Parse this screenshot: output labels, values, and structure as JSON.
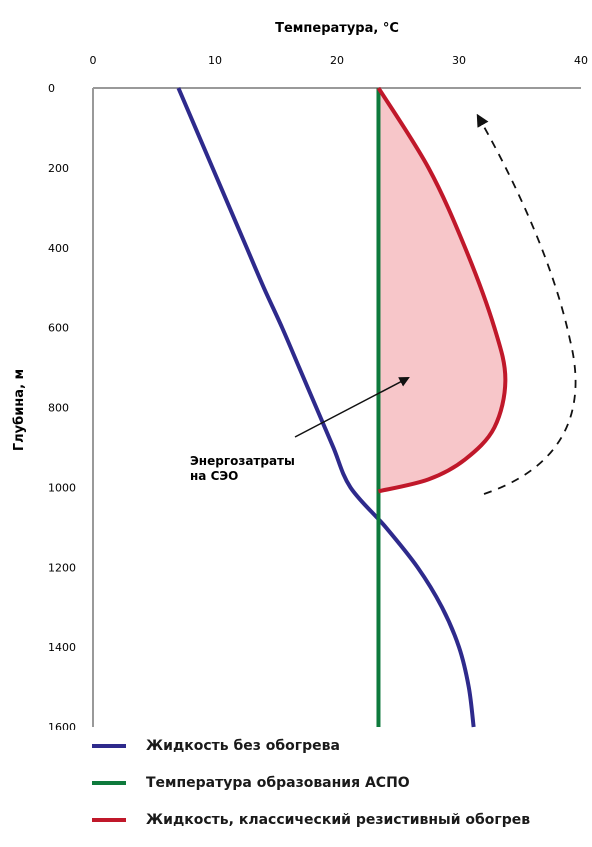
{
  "chart_data": {
    "type": "line",
    "title": "Температура, °C",
    "xlabel": "Температура, °C",
    "ylabel": "Глубина, м",
    "x_axis_position": "top",
    "y_axis_inverted": true,
    "xlim": [
      0,
      40
    ],
    "ylim": [
      0,
      1600
    ],
    "xticks": [
      "0",
      "10",
      "20",
      "30",
      "40"
    ],
    "yticks": [
      "0",
      "200",
      "400",
      "600",
      "800",
      "1000",
      "1200",
      "1400",
      "1600"
    ],
    "grid": false,
    "legend_position": "bottom",
    "series": [
      {
        "name": "Жидкость без обогрева",
        "color": "#2e2a8c",
        "points": [
          [
            7.0,
            0
          ],
          [
            8.4,
            100
          ],
          [
            9.8,
            200
          ],
          [
            11.2,
            300
          ],
          [
            12.6,
            400
          ],
          [
            14.0,
            500
          ],
          [
            15.5,
            600
          ],
          [
            16.9,
            700
          ],
          [
            18.3,
            800
          ],
          [
            19.7,
            900
          ],
          [
            21.1,
            1000
          ],
          [
            24.0,
            1100
          ],
          [
            26.6,
            1200
          ],
          [
            28.6,
            1300
          ],
          [
            30.0,
            1400
          ],
          [
            30.8,
            1500
          ],
          [
            31.2,
            1600
          ]
        ]
      },
      {
        "name": "Температура образования АСПО",
        "color": "#0e7a3c",
        "points": [
          [
            23.4,
            0
          ],
          [
            23.4,
            1600
          ]
        ]
      },
      {
        "name": "Жидкость, классический резистивный обогрев",
        "color": "#c0182a",
        "points": [
          [
            23.4,
            0
          ],
          [
            27.5,
            200
          ],
          [
            30.5,
            400
          ],
          [
            32.9,
            600
          ],
          [
            33.8,
            730
          ],
          [
            32.9,
            850
          ],
          [
            30.5,
            930
          ],
          [
            27.5,
            980
          ],
          [
            23.4,
            1010
          ]
        ]
      }
    ],
    "annotations": [
      {
        "text_lines": [
          "Энергозатраты",
          "на СЭО"
        ]
      }
    ]
  },
  "legend": {
    "items": [
      {
        "label": "Жидкость без обогрева",
        "color": "#2e2a8c"
      },
      {
        "label": "Температура образования АСПО",
        "color": "#0e7a3c"
      },
      {
        "label": "Жидкость, классический резистивный обогрев",
        "color": "#c0182a"
      }
    ]
  },
  "colors": {
    "axis": "#999999",
    "fill": "#f7c6c9",
    "text": "#1a1a1a"
  }
}
